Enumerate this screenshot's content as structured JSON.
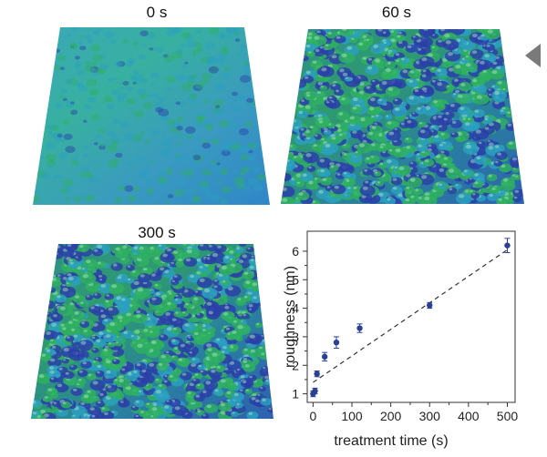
{
  "panels": [
    {
      "label": "0 s"
    },
    {
      "label": "60 s"
    },
    {
      "label": "300 s"
    }
  ],
  "colors": {
    "surface_low": "#2a3fa8",
    "surface_mid": "#2aa0c0",
    "surface_high": "#2eb060",
    "marker": "#2b3f94",
    "fit_line": "#333333",
    "nav_arrow": "#7a7a7a"
  },
  "nav": {
    "icon": "triangle-left-icon"
  },
  "chart_data": {
    "type": "scatter",
    "xlabel": "treatment time (s)",
    "ylabel": "roughness (nm)",
    "xlim": [
      -15,
      520
    ],
    "ylim": [
      0.7,
      6.7
    ],
    "xticks": [
      0,
      100,
      200,
      300,
      400,
      500
    ],
    "yticks": [
      1,
      2,
      3,
      4,
      5,
      6
    ],
    "grid": false,
    "points": [
      {
        "x": 0,
        "y": 1.0,
        "err": 0.1
      },
      {
        "x": 5,
        "y": 1.1,
        "err": 0.1
      },
      {
        "x": 10,
        "y": 1.7,
        "err": 0.1
      },
      {
        "x": 30,
        "y": 2.3,
        "err": 0.15
      },
      {
        "x": 60,
        "y": 2.8,
        "err": 0.2
      },
      {
        "x": 120,
        "y": 3.3,
        "err": 0.15
      },
      {
        "x": 300,
        "y": 4.1,
        "err": 0.1
      },
      {
        "x": 500,
        "y": 6.2,
        "err": 0.25
      }
    ],
    "fit_line": {
      "style": "dashed",
      "from": [
        0,
        1.4
      ],
      "to": [
        500,
        6.05
      ]
    }
  }
}
